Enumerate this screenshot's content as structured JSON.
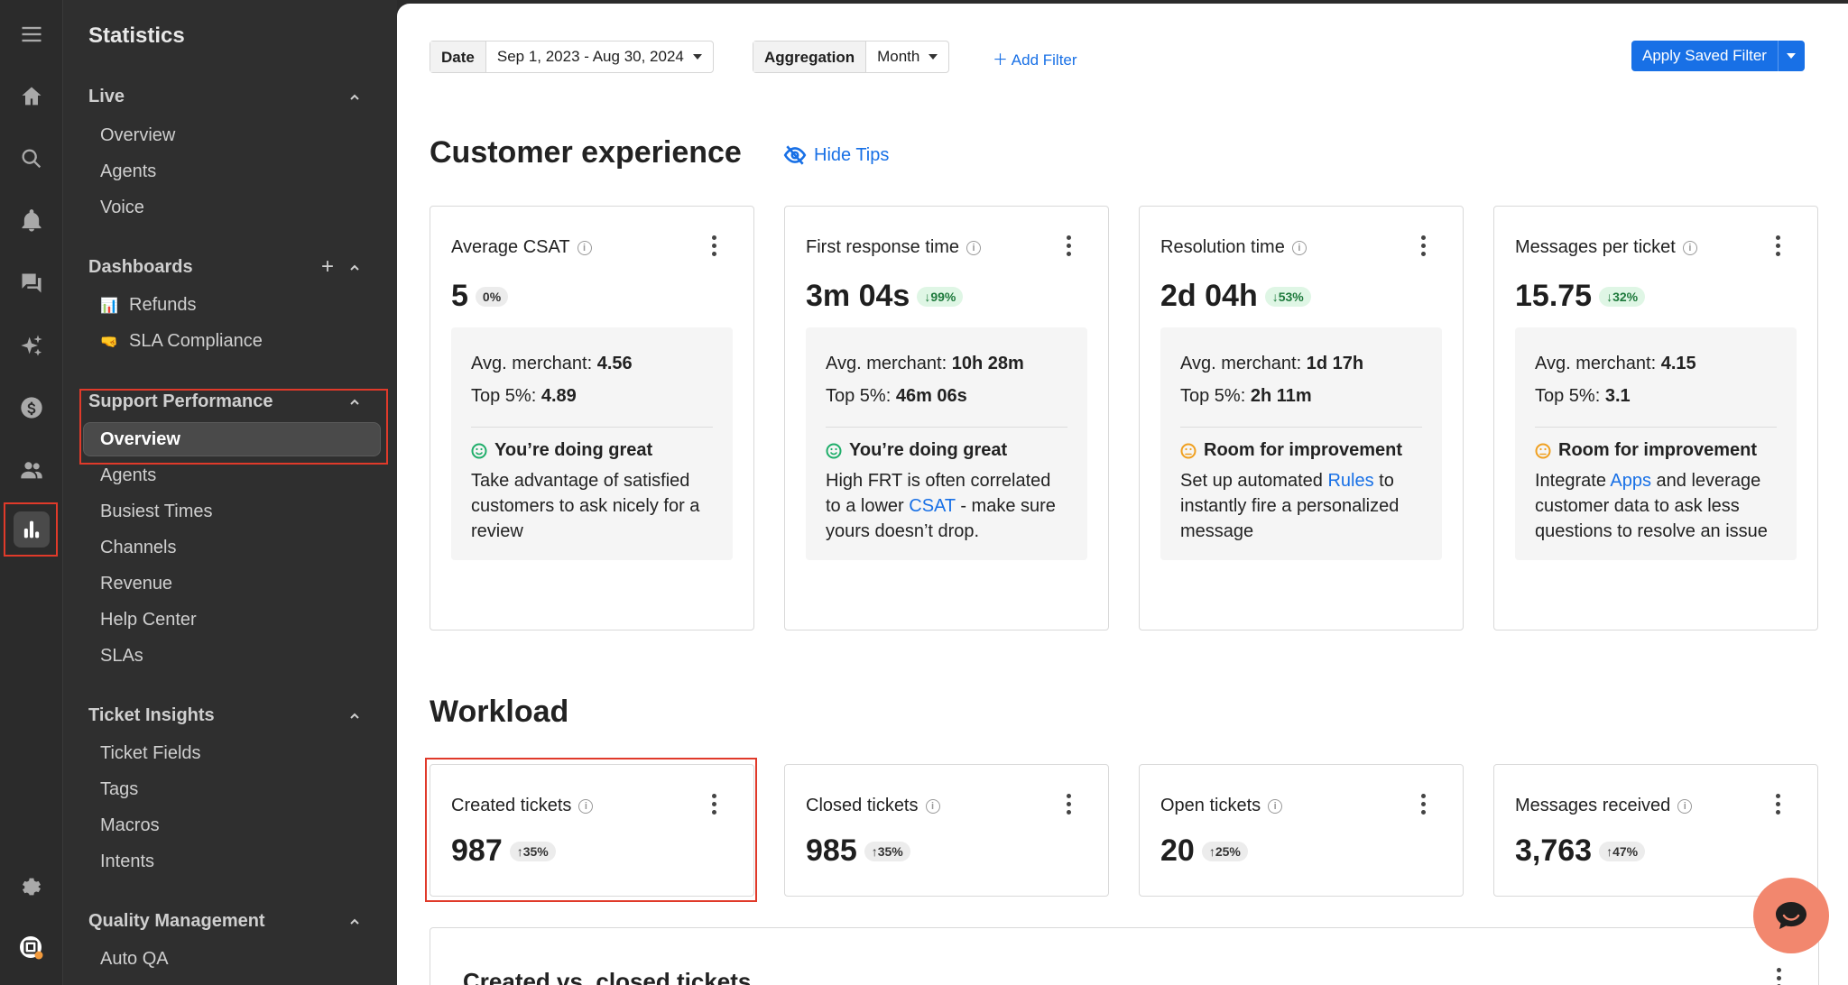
{
  "sidebar": {
    "title": "Statistics",
    "sections": {
      "live": {
        "label": "Live",
        "items": [
          "Overview",
          "Agents",
          "Voice"
        ]
      },
      "dashboards": {
        "label": "Dashboards",
        "items": [
          {
            "emoji": "📊",
            "label": "Refunds"
          },
          {
            "emoji": "🤜",
            "label": "SLA Compliance"
          }
        ]
      },
      "support_performance": {
        "label": "Support Performance",
        "items": [
          "Overview",
          "Agents",
          "Busiest Times",
          "Channels",
          "Revenue",
          "Help Center",
          "SLAs"
        ]
      },
      "ticket_insights": {
        "label": "Ticket Insights",
        "items": [
          "Ticket Fields",
          "Tags",
          "Macros",
          "Intents"
        ]
      },
      "quality_management": {
        "label": "Quality Management",
        "items": [
          "Auto QA"
        ]
      }
    }
  },
  "filters": {
    "date_label": "Date",
    "date_value": "Sep 1, 2023 - Aug 30, 2024",
    "aggregation_label": "Aggregation",
    "aggregation_value": "Month",
    "add_filter": "Add Filter",
    "apply_saved": "Apply Saved Filter"
  },
  "customer_experience": {
    "title": "Customer experience",
    "hide_tips": "Hide Tips",
    "cards": [
      {
        "label": "Average CSAT",
        "value": "5",
        "delta": "0%",
        "avg_label": "Avg. merchant:",
        "avg": "4.56",
        "top_label": "Top 5%:",
        "top": "4.89",
        "status": "You’re doing great",
        "tip_pre": "Take advantage of satisfied customers to ask nicely for a review",
        "tip_link": "",
        "tip_post": ""
      },
      {
        "label": "First response time",
        "value": "3m 04s",
        "delta": "↓99%",
        "avg_label": "Avg. merchant:",
        "avg": "10h 28m",
        "top_label": "Top 5%:",
        "top": "46m 06s",
        "status": "You’re doing great",
        "tip_pre": "High FRT is often correlated to a lower ",
        "tip_link": "CSAT",
        "tip_post": " - make sure yours doesn’t drop."
      },
      {
        "label": "Resolution time",
        "value": "2d 04h",
        "delta": "↓53%",
        "avg_label": "Avg. merchant:",
        "avg": "1d 17h",
        "top_label": "Top 5%:",
        "top": "2h 11m",
        "status": "Room for improvement",
        "tip_pre": "Set up automated ",
        "tip_link": "Rules",
        "tip_post": " to instantly fire a personalized message"
      },
      {
        "label": "Messages per ticket",
        "value": "15.75",
        "delta": "↓32%",
        "avg_label": "Avg. merchant:",
        "avg": "4.15",
        "top_label": "Top 5%:",
        "top": "3.1",
        "status": "Room for improvement",
        "tip_pre": "Integrate ",
        "tip_link": "Apps",
        "tip_post": " and leverage customer data to ask less questions to resolve an issue"
      }
    ]
  },
  "workload": {
    "title": "Workload",
    "cards": [
      {
        "label": "Created tickets",
        "value": "987",
        "delta": "↑35%"
      },
      {
        "label": "Closed tickets",
        "value": "985",
        "delta": "↑35%"
      },
      {
        "label": "Open tickets",
        "value": "20",
        "delta": "↑25%"
      },
      {
        "label": "Messages received",
        "value": "3,763",
        "delta": "↑47%"
      }
    ],
    "chart_title": "Created vs. closed tickets"
  },
  "colors": {
    "accent": "#1870e6",
    "highlight": "#e03a2a",
    "success": "#1e7a3c",
    "warning": "#f0a020",
    "chat": "#f2876e"
  }
}
